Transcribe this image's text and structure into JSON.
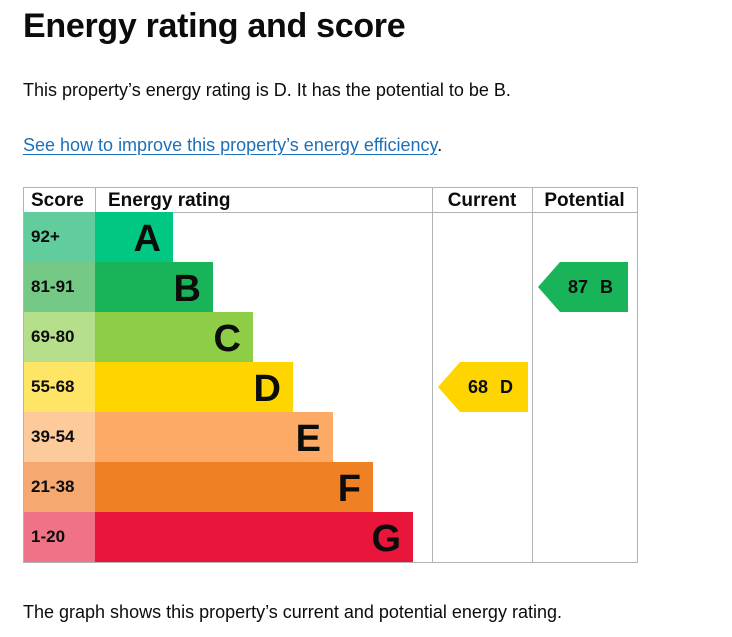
{
  "page": {
    "title": "Energy rating and score",
    "intro": "This property’s energy rating is D. It has the potential to be B.",
    "improve_link": "See how to improve this property’s energy efficiency",
    "improve_link_suffix": ".",
    "caption": "The graph shows this property’s current and potential energy rating."
  },
  "chart_data": {
    "type": "bar",
    "headers": {
      "score": "Score",
      "rating": "Energy rating",
      "current": "Current",
      "potential": "Potential"
    },
    "bands": [
      {
        "score": "92+",
        "letter": "A",
        "color": "#0c7c42",
        "bar_color": "#00c781",
        "score_bg": "#62cd9c"
      },
      {
        "score": "81-91",
        "letter": "B",
        "color": "#19b459",
        "bar_color": "#19b459",
        "score_bg": "#75c987"
      },
      {
        "score": "69-80",
        "letter": "C",
        "color": "#8dce46",
        "bar_color": "#8dce46",
        "score_bg": "#b5df8a"
      },
      {
        "score": "55-68",
        "letter": "D",
        "color": "#ffd500",
        "bar_color": "#ffd500",
        "score_bg": "#ffe566"
      },
      {
        "score": "39-54",
        "letter": "E",
        "color": "#fcaa65",
        "bar_color": "#fcaa65",
        "score_bg": "#fdca9c"
      },
      {
        "score": "21-38",
        "letter": "F",
        "color": "#ef8023",
        "bar_color": "#ef8023",
        "score_bg": "#f5a971"
      },
      {
        "score": "1-20",
        "letter": "G",
        "color": "#e9153b",
        "bar_color": "#e9153b",
        "score_bg": "#f07287"
      }
    ],
    "current": {
      "value": 68,
      "letter": "D",
      "color": "#ffd500"
    },
    "potential": {
      "value": 87,
      "letter": "B",
      "color": "#19b459"
    }
  }
}
